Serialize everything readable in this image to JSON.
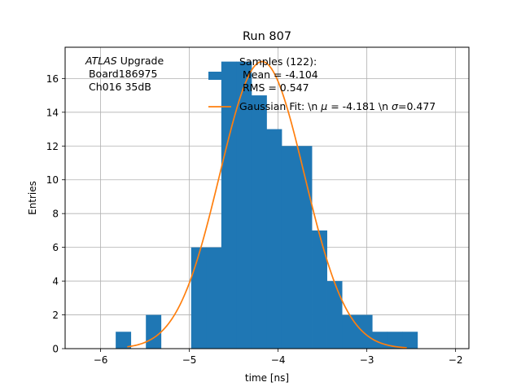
{
  "chart_data": {
    "type": "bar",
    "title": "Run 807",
    "xlabel": "time [ns]",
    "ylabel": "Entries",
    "xlim": [
      -6.4,
      -1.85
    ],
    "ylim": [
      0,
      17.85
    ],
    "grid": true,
    "x_ticks": [
      -6,
      -5,
      -4,
      -3,
      -2
    ],
    "x_tick_labels": [
      "−6",
      "−5",
      "−4",
      "−3",
      "−2"
    ],
    "y_ticks": [
      0,
      2,
      4,
      6,
      8,
      10,
      12,
      14,
      16
    ],
    "y_tick_labels": [
      "0",
      "2",
      "4",
      "6",
      "8",
      "10",
      "12",
      "14",
      "16"
    ],
    "annotation": {
      "line1_italic": "ATLAS",
      "line1_rest": " Upgrade",
      "line2": " Board186975",
      "line3": " Ch016 35dB"
    },
    "legend": {
      "placement": "top-right",
      "hist_lines": [
        "Samples (122):",
        " Mean = -4.104",
        " RMS = 0.547"
      ],
      "fit_label_prefix": "Gaussian Fit: \\n ",
      "fit_mu_symbol": "μ",
      "fit_mu_value": " = -4.181 \\n ",
      "fit_sigma_symbol": "σ",
      "fit_sigma_value": "=0.477"
    },
    "histogram": {
      "color": "#1f77b4",
      "bins": [
        {
          "x0": -5.83,
          "x1": -5.66,
          "count": 1
        },
        {
          "x0": -5.66,
          "x1": -5.49,
          "count": 0
        },
        {
          "x0": -5.49,
          "x1": -5.32,
          "count": 2
        },
        {
          "x0": -5.32,
          "x1": -5.15,
          "count": 0
        },
        {
          "x0": -5.15,
          "x1": -4.98,
          "count": 0
        },
        {
          "x0": -4.98,
          "x1": -4.81,
          "count": 6
        },
        {
          "x0": -4.81,
          "x1": -4.64,
          "count": 6
        },
        {
          "x0": -4.64,
          "x1": -4.47,
          "count": 17
        },
        {
          "x0": -4.47,
          "x1": -4.3,
          "count": 17
        },
        {
          "x0": -4.3,
          "x1": -4.13,
          "count": 15
        },
        {
          "x0": -4.13,
          "x1": -3.96,
          "count": 13
        },
        {
          "x0": -3.96,
          "x1": -3.79,
          "count": 12
        },
        {
          "x0": -3.79,
          "x1": -3.62,
          "count": 12
        },
        {
          "x0": -3.62,
          "x1": -3.45,
          "count": 7
        },
        {
          "x0": -3.45,
          "x1": -3.28,
          "count": 4
        },
        {
          "x0": -3.28,
          "x1": -3.11,
          "count": 2
        },
        {
          "x0": -3.11,
          "x1": -2.94,
          "count": 2
        },
        {
          "x0": -2.94,
          "x1": -2.77,
          "count": 1
        },
        {
          "x0": -2.77,
          "x1": -2.6,
          "count": 1
        },
        {
          "x0": -2.6,
          "x1": -2.43,
          "count": 1
        }
      ]
    },
    "fit": {
      "color": "#ff7f0e",
      "mu": -4.181,
      "sigma": 0.477,
      "amplitude": 17.0,
      "x_range": [
        -5.7,
        -2.55
      ]
    }
  }
}
